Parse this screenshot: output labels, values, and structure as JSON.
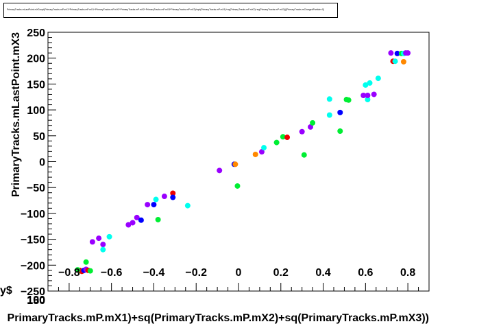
{
  "chart_data": {
    "type": "scatter",
    "title": "PrimaryTracks.mLastPoint.mX3:sqrt(PrimaryTracks.mP.mX1*PrimaryTracks.mP.mX1+PrimaryTracks.mP.mX2*PrimaryTracks.mP.mX2+PrimaryTracks.mP.mX3*PrimaryTracks.mP.mX3)/sqrt(PrimaryTracks.mP.mX1)+sq(PrimaryTracks.mP.mX2)+sq(PrimaryTracks.mP.mX3)){PrimaryTracks.mChargedParticle>0}",
    "xlabel": "PrimaryTracks.mP.mX1)+sq(PrimaryTracks.mP.mX2)+sq(PrimaryTracks.mP.mX3))",
    "ylabel": "PrimaryTracks.mLastPoint.mX3",
    "extra_label": "y$",
    "corner_labels": [
      "-250",
      "100",
      "150"
    ],
    "xlim": [
      -0.9,
      0.9
    ],
    "ylim": [
      -250,
      250
    ],
    "x_ticks": [
      "-0.8",
      "-0.6",
      "-0.4",
      "-0.2",
      "0",
      "0.2",
      "0.4",
      "0.6",
      "0.8"
    ],
    "x_tick_values": [
      -0.8,
      -0.6,
      -0.4,
      -0.2,
      0,
      0.2,
      0.4,
      0.6,
      0.8
    ],
    "y_ticks": [
      "-200",
      "-150",
      "-100",
      "-50",
      "0",
      "50",
      "100",
      "150",
      "200",
      "250"
    ],
    "y_tick_values": [
      -200,
      -150,
      -100,
      -50,
      0,
      50,
      100,
      150,
      200,
      250
    ],
    "grid": false,
    "points": [
      {
        "x": -0.75,
        "y": -210,
        "color": "#ee0000"
      },
      {
        "x": -0.74,
        "y": -212,
        "color": "#ee0000"
      },
      {
        "x": -0.73,
        "y": -210,
        "color": "#0000ff"
      },
      {
        "x": -0.72,
        "y": -208,
        "color": "#9900ff"
      },
      {
        "x": -0.76,
        "y": -209,
        "color": "#00ee33"
      },
      {
        "x": -0.71,
        "y": -210,
        "color": "#ee0000"
      },
      {
        "x": -0.72,
        "y": -194,
        "color": "#00ee33"
      },
      {
        "x": -0.7,
        "y": -211,
        "color": "#00ee33"
      },
      {
        "x": -0.69,
        "y": -155,
        "color": "#9900ff"
      },
      {
        "x": -0.66,
        "y": -148,
        "color": "#9900ff"
      },
      {
        "x": -0.64,
        "y": -160,
        "color": "#9900ff"
      },
      {
        "x": -0.64,
        "y": -170,
        "color": "#00ffee"
      },
      {
        "x": -0.61,
        "y": -145,
        "color": "#00ffee"
      },
      {
        "x": -0.52,
        "y": -122,
        "color": "#9900ff"
      },
      {
        "x": -0.5,
        "y": -118,
        "color": "#9900ff"
      },
      {
        "x": -0.48,
        "y": -108,
        "color": "#9900ff"
      },
      {
        "x": -0.46,
        "y": -113,
        "color": "#0000ff"
      },
      {
        "x": -0.43,
        "y": -83,
        "color": "#9900ff"
      },
      {
        "x": -0.4,
        "y": -83,
        "color": "#0000ff"
      },
      {
        "x": -0.39,
        "y": -73,
        "color": "#00ffee"
      },
      {
        "x": -0.38,
        "y": -112,
        "color": "#00ee33"
      },
      {
        "x": -0.35,
        "y": -67,
        "color": "#9900ff"
      },
      {
        "x": -0.31,
        "y": -61,
        "color": "#ee0000"
      },
      {
        "x": -0.31,
        "y": -69,
        "color": "#0000ff"
      },
      {
        "x": -0.24,
        "y": -85,
        "color": "#00ffee"
      },
      {
        "x": -0.09,
        "y": -17,
        "color": "#9900ff"
      },
      {
        "x": -0.02,
        "y": -5,
        "color": "#0000ff"
      },
      {
        "x": -0.015,
        "y": -5,
        "color": "#ff8800"
      },
      {
        "x": -0.005,
        "y": -47,
        "color": "#00ee33"
      },
      {
        "x": 0.08,
        "y": 14,
        "color": "#ff8800"
      },
      {
        "x": 0.11,
        "y": 19,
        "color": "#9900ff"
      },
      {
        "x": 0.12,
        "y": 27,
        "color": "#00ffee"
      },
      {
        "x": 0.18,
        "y": 37,
        "color": "#00ee33"
      },
      {
        "x": 0.21,
        "y": 48,
        "color": "#00ee33"
      },
      {
        "x": 0.23,
        "y": 47,
        "color": "#ee0000"
      },
      {
        "x": 0.3,
        "y": 58,
        "color": "#9900ff"
      },
      {
        "x": 0.31,
        "y": 13,
        "color": "#00ee33"
      },
      {
        "x": 0.34,
        "y": 67,
        "color": "#9900ff"
      },
      {
        "x": 0.35,
        "y": 75,
        "color": "#00ee33"
      },
      {
        "x": 0.43,
        "y": 121,
        "color": "#00ffee"
      },
      {
        "x": 0.43,
        "y": 90,
        "color": "#00ffee"
      },
      {
        "x": 0.48,
        "y": 95,
        "color": "#0000ff"
      },
      {
        "x": 0.48,
        "y": 59,
        "color": "#00ee33"
      },
      {
        "x": 0.51,
        "y": 120,
        "color": "#00ee33"
      },
      {
        "x": 0.52,
        "y": 119,
        "color": "#00ee33"
      },
      {
        "x": 0.59,
        "y": 128,
        "color": "#9900ff"
      },
      {
        "x": 0.6,
        "y": 148,
        "color": "#00ffee"
      },
      {
        "x": 0.61,
        "y": 120,
        "color": "#00ffee"
      },
      {
        "x": 0.61,
        "y": 128,
        "color": "#9900ff"
      },
      {
        "x": 0.62,
        "y": 152,
        "color": "#00ffee"
      },
      {
        "x": 0.64,
        "y": 130,
        "color": "#9900ff"
      },
      {
        "x": 0.66,
        "y": 161,
        "color": "#00ffee"
      },
      {
        "x": 0.72,
        "y": 210,
        "color": "#9900ff"
      },
      {
        "x": 0.73,
        "y": 194,
        "color": "#ee0000"
      },
      {
        "x": 0.74,
        "y": 194,
        "color": "#00ffee"
      },
      {
        "x": 0.75,
        "y": 209,
        "color": "#0000ff"
      },
      {
        "x": 0.77,
        "y": 209,
        "color": "#00ee33"
      },
      {
        "x": 0.78,
        "y": 193,
        "color": "#ff8800"
      },
      {
        "x": 0.78,
        "y": 209,
        "color": "#00ffee"
      },
      {
        "x": 0.79,
        "y": 210,
        "color": "#9900ff"
      },
      {
        "x": 0.8,
        "y": 210,
        "color": "#9900ff"
      }
    ]
  }
}
